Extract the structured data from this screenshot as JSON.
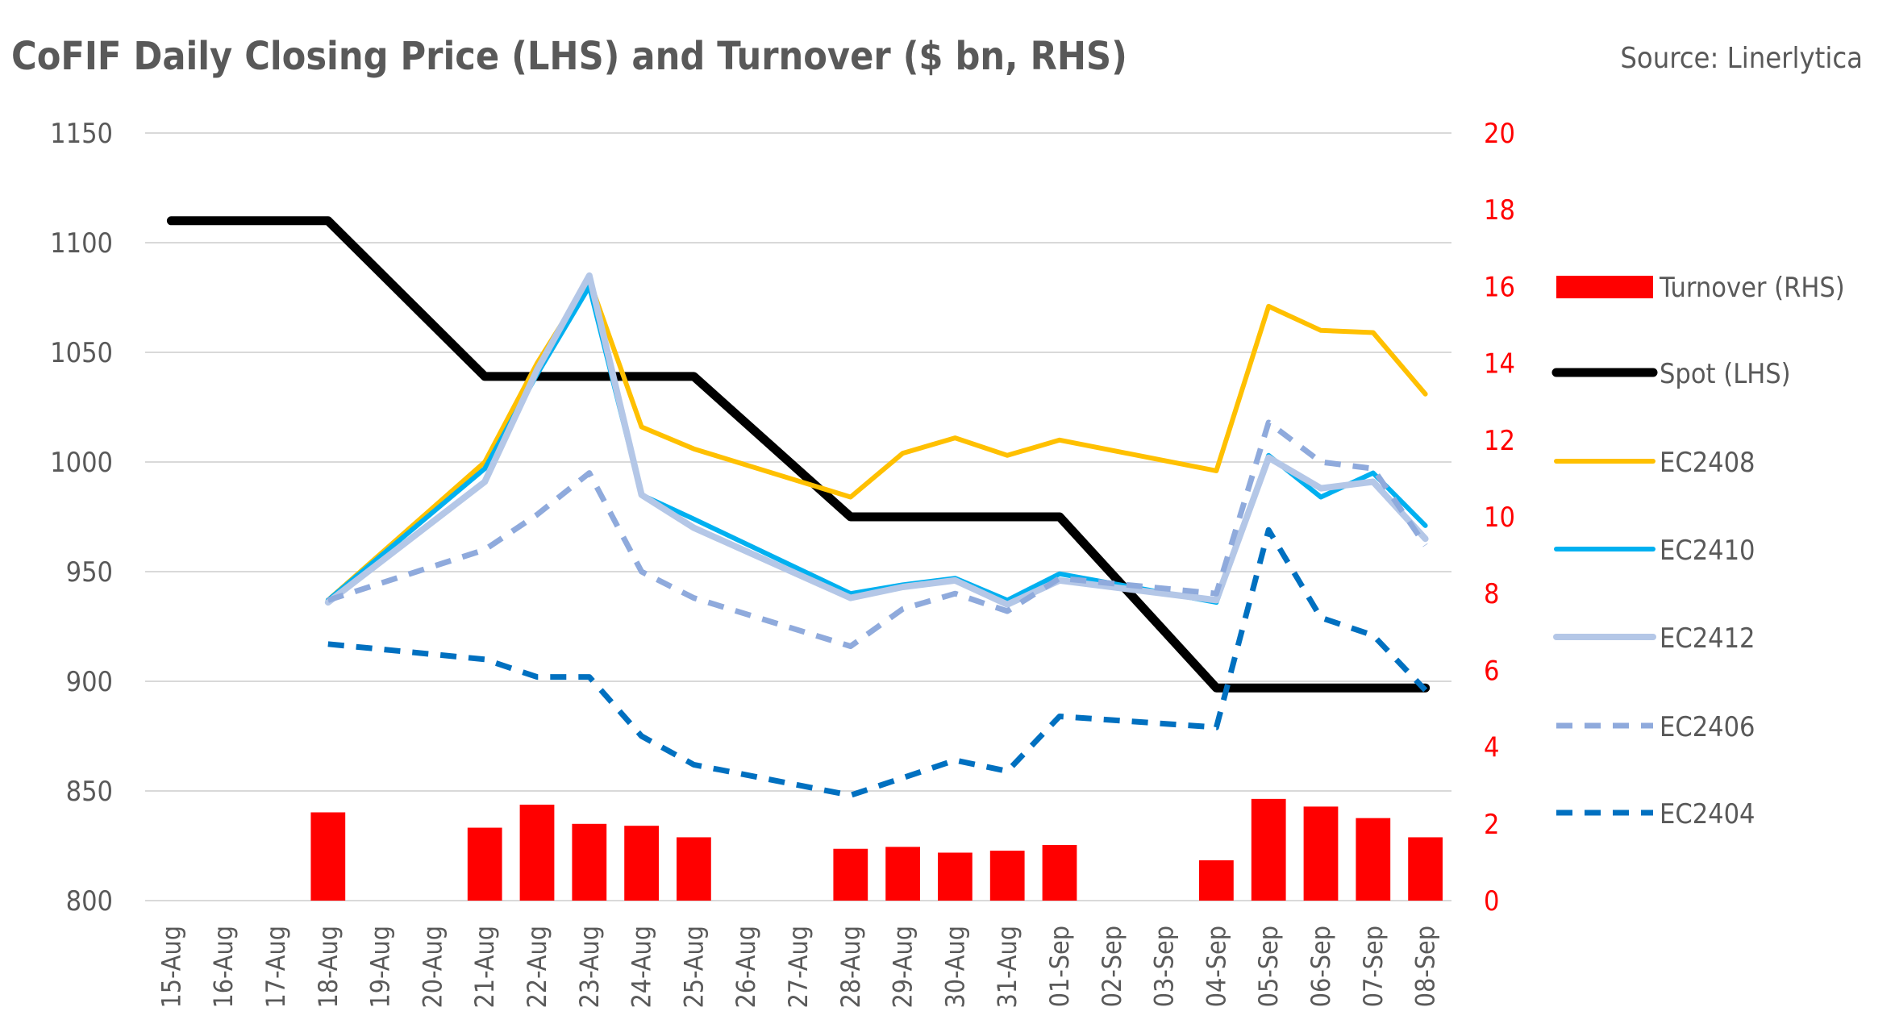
{
  "chart_data": {
    "type": "line",
    "title": "CoFIF Daily Closing Price (LHS) and Turnover ($ bn, RHS)",
    "source": "Source: Linerlytica",
    "categories": [
      "15-Aug",
      "16-Aug",
      "17-Aug",
      "18-Aug",
      "19-Aug",
      "20-Aug",
      "21-Aug",
      "22-Aug",
      "23-Aug",
      "24-Aug",
      "25-Aug",
      "26-Aug",
      "27-Aug",
      "28-Aug",
      "29-Aug",
      "30-Aug",
      "31-Aug",
      "01-Sep",
      "02-Sep",
      "03-Sep",
      "04-Sep",
      "05-Sep",
      "06-Sep",
      "07-Sep",
      "08-Sep"
    ],
    "y_left": {
      "ticks": [
        "800",
        "850",
        "900",
        "950",
        "1000",
        "1050",
        "1100",
        "1150"
      ],
      "range": [
        800,
        1150
      ]
    },
    "y_right": {
      "ticks": [
        "0",
        "2",
        "4",
        "6",
        "8",
        "10",
        "12",
        "14",
        "16",
        "18",
        "20"
      ],
      "range": [
        0,
        20
      ]
    },
    "grid": true,
    "legend_position": "right",
    "series": [
      {
        "name": "Turnover (RHS)",
        "type": "bar",
        "axis": "right",
        "color": "#ff0000",
        "values": [
          null,
          null,
          null,
          2.3,
          null,
          null,
          1.9,
          2.5,
          2.0,
          1.95,
          1.65,
          null,
          null,
          1.35,
          1.4,
          1.25,
          1.3,
          1.45,
          null,
          null,
          1.05,
          2.65,
          2.45,
          2.15,
          1.65
        ]
      },
      {
        "name": "Spot (LHS)",
        "type": "line",
        "axis": "left",
        "color": "#000000",
        "dash": "solid",
        "width": 11,
        "values": [
          1110,
          1110,
          1110,
          1110,
          null,
          null,
          1039,
          1039,
          1039,
          1039,
          1039,
          null,
          null,
          975,
          975,
          975,
          975,
          975,
          null,
          null,
          897,
          897,
          897,
          897,
          897
        ]
      },
      {
        "name": "EC2408",
        "type": "line",
        "axis": "left",
        "color": "#ffc000",
        "dash": "solid",
        "width": 6,
        "values": [
          null,
          null,
          null,
          937,
          null,
          null,
          1000,
          1045,
          1083,
          1016,
          1006,
          null,
          null,
          984,
          1004,
          1011,
          1003,
          1010,
          null,
          null,
          996,
          1071,
          1060,
          1059,
          1031
        ]
      },
      {
        "name": "EC2410",
        "type": "line",
        "axis": "left",
        "color": "#00b0f0",
        "dash": "solid",
        "width": 6,
        "values": [
          null,
          null,
          null,
          937,
          null,
          null,
          997,
          1040,
          1080,
          985,
          974,
          null,
          null,
          940,
          944,
          947,
          937,
          949,
          null,
          null,
          936,
          1003,
          984,
          995,
          971
        ]
      },
      {
        "name": "EC2412",
        "type": "line",
        "axis": "left",
        "color": "#b4c7e7",
        "dash": "solid",
        "width": 8,
        "values": [
          null,
          null,
          null,
          936,
          null,
          null,
          991,
          1042,
          1085,
          985,
          970,
          null,
          null,
          938,
          943,
          946,
          935,
          946,
          null,
          null,
          937,
          1002,
          988,
          991,
          965
        ]
      },
      {
        "name": "EC2406",
        "type": "line",
        "axis": "left",
        "color": "#8faadc",
        "dash": "dashed",
        "width": 7,
        "values": [
          null,
          null,
          null,
          937,
          null,
          null,
          960,
          976,
          995,
          950,
          938,
          null,
          null,
          916,
          933,
          940,
          932,
          947,
          null,
          null,
          940,
          1018,
          1000,
          997,
          962
        ]
      },
      {
        "name": "EC2404",
        "type": "line",
        "axis": "left",
        "color": "#0070c0",
        "dash": "dashed",
        "width": 7,
        "values": [
          null,
          null,
          null,
          917,
          null,
          null,
          910,
          902,
          902,
          875,
          862,
          null,
          null,
          848,
          856,
          864,
          859,
          884,
          null,
          null,
          879,
          969,
          929,
          921,
          896
        ]
      }
    ]
  }
}
